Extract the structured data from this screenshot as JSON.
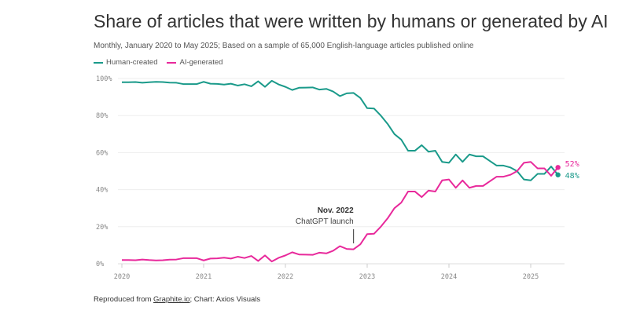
{
  "chart_data": {
    "type": "line",
    "title": "Share of articles that were written by humans or generated by AI",
    "subtitle": "Monthly, January 2020 to May 2025; Based on a sample of 65,000 English-language articles published online",
    "x_start": "2020-01",
    "x_end": "2025-05",
    "x_ticks": [
      "2020",
      "2021",
      "2022",
      "2023",
      "2024",
      "2025"
    ],
    "y_ticks": [
      "0%",
      "20%",
      "40%",
      "60%",
      "80%",
      "100%"
    ],
    "ylim": [
      0,
      100
    ],
    "grid": true,
    "legend_placement": "top-left",
    "series": [
      {
        "name": "Human-created",
        "color": "#1a9a8a",
        "end_label": "48%",
        "values": [
          98,
          98,
          98.1,
          97.7,
          98,
          98.2,
          98.1,
          97.8,
          97.7,
          97,
          97,
          97,
          98.2,
          97.2,
          97.1,
          96.7,
          97.2,
          96.2,
          96.9,
          95.8,
          98.5,
          95.5,
          98.8,
          96.8,
          95.5,
          93.8,
          95,
          95.1,
          95.2,
          94,
          94.4,
          93,
          90.5,
          92,
          92.2,
          89.5,
          84,
          83.8,
          80,
          75.5,
          70,
          67,
          61,
          61,
          64,
          60.5,
          61,
          55,
          54.5,
          59,
          55,
          59,
          58,
          58,
          55.5,
          53,
          53,
          52,
          50,
          45.5,
          45,
          48.5,
          48.5,
          52.5,
          48
        ]
      },
      {
        "name": "AI-generated",
        "color": "#e8299b",
        "end_label": "52%",
        "values": [
          2,
          2,
          1.9,
          2.3,
          2,
          1.8,
          1.9,
          2.2,
          2.3,
          3,
          3,
          3,
          1.8,
          2.8,
          2.9,
          3.3,
          2.8,
          3.8,
          3.1,
          4.2,
          1.5,
          4.5,
          1.2,
          3.2,
          4.5,
          6.2,
          5,
          4.9,
          4.8,
          6,
          5.6,
          7,
          9.5,
          8,
          7.8,
          10.5,
          16,
          16.2,
          20,
          24.5,
          30,
          33,
          39,
          39,
          36,
          39.5,
          39,
          45,
          45.5,
          41,
          45,
          41,
          42,
          42,
          44.5,
          47,
          47,
          48,
          50,
          54.5,
          55,
          51.5,
          51.5,
          47.5,
          52
        ]
      }
    ],
    "annotation": {
      "date": "2022-11",
      "title": "Nov. 2022",
      "text": "ChatGPT launch"
    }
  },
  "footer": {
    "prefix": "Reproduced from ",
    "link": "Graphite.io",
    "suffix": "; Chart: Axios Visuals"
  }
}
